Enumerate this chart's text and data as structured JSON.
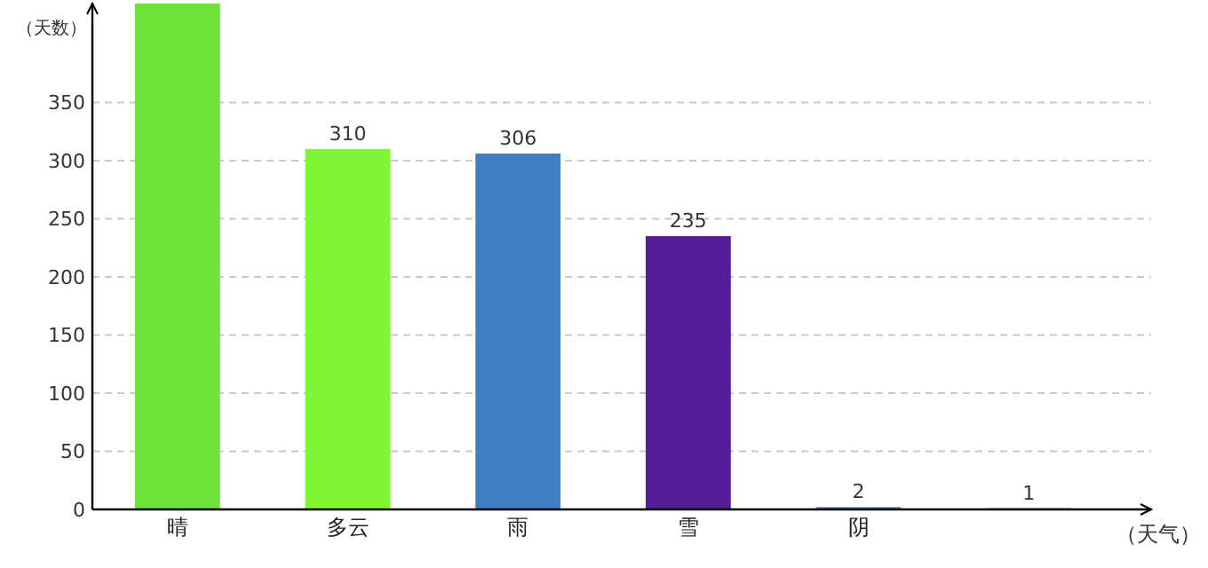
{
  "chart_data": {
    "type": "bar",
    "xlabel": "（天气）",
    "ylabel": "（天数）",
    "categories": [
      "晴",
      "多云",
      "雨",
      "雪",
      "阴",
      null
    ],
    "values": [
      435,
      310,
      306,
      235,
      2,
      1
    ],
    "value_labels": [
      null,
      "310",
      "306",
      "235",
      "2",
      "1"
    ],
    "colors": [
      "#6ee23a",
      "#80f535",
      "#437dc4",
      "#561d96",
      "#4a78b5",
      "#2e4a66"
    ],
    "ylim": [
      0,
      435
    ],
    "yticks": [
      0,
      50,
      100,
      150,
      200,
      250,
      300,
      350
    ],
    "grid": "y"
  }
}
